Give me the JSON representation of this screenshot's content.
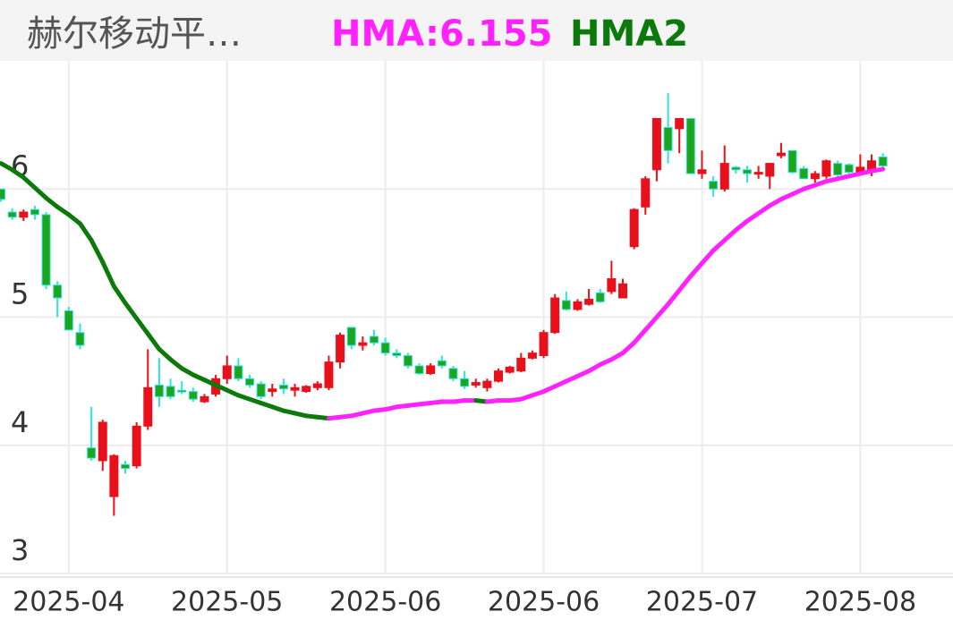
{
  "chart_data": {
    "type": "candlestick",
    "title": "赫尔移动平…",
    "legend": [
      {
        "text": "HMA:6.155",
        "color": "#ff22ff"
      },
      {
        "text": "HMA2",
        "color": "#0b7a0b"
      }
    ],
    "up_color": "#e8101a",
    "down_color": "#1da61d",
    "down_wick_color": "#2ee3e3",
    "hma_up_color": "#ff22ff",
    "hma_down_color": "#0b7a0b",
    "ylim": [
      3,
      7
    ],
    "yticks": [
      3,
      4,
      5,
      6
    ],
    "grid": true,
    "xlim": [
      -0.08,
      84.2
    ],
    "xticks": [
      {
        "value": 6,
        "label": "2025-04"
      },
      {
        "value": 20,
        "label": "2025-05"
      },
      {
        "value": 34,
        "label": "2025-06"
      },
      {
        "value": 48,
        "label": "2025-06"
      },
      {
        "value": 62,
        "label": "2025-07"
      },
      {
        "value": 76,
        "label": "2025-08"
      }
    ],
    "open": [
      6.0,
      5.82,
      5.78,
      5.84,
      5.8,
      5.25,
      5.05,
      4.88,
      3.98,
      3.88,
      3.6,
      3.85,
      3.84,
      4.15,
      4.47,
      4.46,
      4.43,
      4.42,
      4.34,
      4.4,
      4.52,
      4.62,
      4.52,
      4.48,
      4.42,
      4.47,
      4.43,
      4.42,
      4.45,
      4.45,
      4.65,
      4.92,
      4.78,
      4.85,
      4.8,
      4.72,
      4.7,
      4.62,
      4.56,
      4.66,
      4.6,
      4.52,
      4.47,
      4.45,
      4.5,
      4.57,
      4.58,
      4.68,
      4.7,
      4.88,
      5.13,
      5.06,
      5.1,
      5.19,
      5.2,
      5.15,
      5.55,
      5.86,
      6.15,
      6.48,
      6.47,
      6.55,
      6.12,
      6.06,
      6.0,
      6.17,
      6.15,
      6.12,
      6.1,
      6.26,
      6.3,
      6.16,
      6.08,
      6.1,
      6.2,
      6.19,
      6.12,
      6.15,
      6.25
    ],
    "high": [
      6.0,
      5.85,
      5.84,
      5.87,
      5.82,
      5.28,
      5.08,
      4.95,
      4.3,
      4.2,
      3.93,
      3.88,
      4.18,
      4.75,
      4.68,
      4.52,
      4.5,
      4.45,
      4.4,
      4.55,
      4.7,
      4.68,
      4.55,
      4.5,
      4.48,
      4.52,
      4.48,
      4.47,
      4.5,
      4.7,
      4.88,
      4.92,
      4.85,
      4.9,
      4.84,
      4.75,
      4.72,
      4.64,
      4.64,
      4.7,
      4.62,
      4.58,
      4.52,
      4.52,
      4.6,
      4.62,
      4.72,
      4.74,
      4.9,
      5.18,
      5.2,
      5.14,
      5.22,
      5.22,
      5.44,
      5.3,
      5.85,
      6.1,
      6.55,
      6.75,
      6.55,
      6.55,
      6.3,
      6.1,
      6.34,
      6.18,
      6.18,
      6.18,
      6.2,
      6.36,
      6.3,
      6.18,
      6.14,
      6.23,
      6.22,
      6.2,
      6.27,
      6.27,
      6.28
    ],
    "low": [
      5.9,
      5.76,
      5.75,
      5.76,
      5.22,
      5.0,
      4.9,
      4.75,
      3.88,
      3.8,
      3.45,
      3.78,
      3.82,
      4.12,
      4.3,
      4.36,
      4.4,
      4.34,
      4.33,
      4.38,
      4.48,
      4.5,
      4.45,
      4.36,
      4.38,
      4.4,
      4.38,
      4.41,
      4.43,
      4.43,
      4.6,
      4.75,
      4.74,
      4.78,
      4.7,
      4.68,
      4.6,
      4.55,
      4.55,
      4.6,
      4.5,
      4.44,
      4.45,
      4.42,
      4.49,
      4.56,
      4.57,
      4.67,
      4.68,
      4.87,
      5.05,
      5.05,
      5.09,
      5.11,
      5.18,
      5.15,
      5.53,
      5.8,
      6.06,
      6.2,
      6.28,
      6.12,
      6.08,
      5.94,
      5.98,
      6.12,
      6.05,
      6.08,
      6.0,
      6.24,
      6.12,
      6.08,
      6.05,
      6.08,
      6.1,
      6.12,
      6.11,
      6.1,
      6.16
    ],
    "close": [
      5.92,
      5.78,
      5.82,
      5.8,
      5.25,
      5.15,
      4.9,
      4.78,
      3.9,
      4.18,
      3.92,
      3.82,
      4.15,
      4.45,
      4.38,
      4.38,
      4.42,
      4.36,
      4.38,
      4.52,
      4.62,
      4.52,
      4.47,
      4.38,
      4.44,
      4.44,
      4.45,
      4.46,
      4.48,
      4.65,
      4.86,
      4.78,
      4.8,
      4.8,
      4.72,
      4.7,
      4.62,
      4.56,
      4.62,
      4.62,
      4.52,
      4.46,
      4.49,
      4.5,
      4.58,
      4.61,
      4.68,
      4.72,
      4.88,
      5.15,
      5.06,
      5.12,
      5.14,
      5.12,
      5.3,
      5.26,
      5.84,
      6.08,
      6.55,
      6.3,
      6.55,
      6.12,
      6.15,
      6.0,
      6.2,
      6.15,
      6.12,
      6.13,
      6.2,
      6.28,
      6.13,
      6.08,
      6.12,
      6.22,
      6.11,
      6.13,
      6.17,
      6.22,
      6.18
    ],
    "hma": [
      6.2,
      6.15,
      6.09,
      6.01,
      5.93,
      5.86,
      5.8,
      5.73,
      5.6,
      5.43,
      5.24,
      5.11,
      4.99,
      4.87,
      4.75,
      4.67,
      4.6,
      4.55,
      4.51,
      4.47,
      4.43,
      4.39,
      4.36,
      4.33,
      4.3,
      4.27,
      4.25,
      4.23,
      4.22,
      4.21,
      4.22,
      4.23,
      4.25,
      4.27,
      4.28,
      4.3,
      4.31,
      4.32,
      4.33,
      4.34,
      4.34,
      4.35,
      4.35,
      4.34,
      4.35,
      4.35,
      4.36,
      4.39,
      4.42,
      4.46,
      4.5,
      4.54,
      4.58,
      4.63,
      4.67,
      4.72,
      4.8,
      4.9,
      5.0,
      5.1,
      5.21,
      5.32,
      5.42,
      5.52,
      5.6,
      5.68,
      5.75,
      5.81,
      5.87,
      5.92,
      5.96,
      6.0,
      6.03,
      6.06,
      6.08,
      6.1,
      6.12,
      6.14,
      6.155
    ]
  }
}
